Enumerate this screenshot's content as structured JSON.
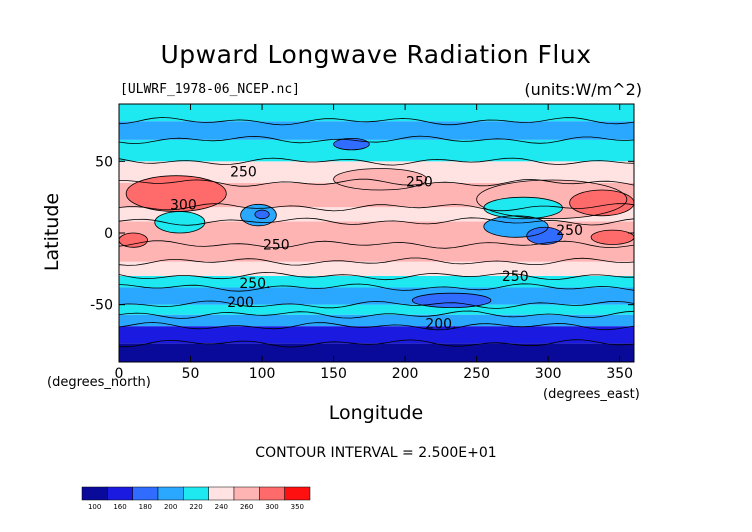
{
  "title": "Upward Longwave Radiation Flux",
  "source_label": "[ULWRF_1978-06_NCEP.nc]",
  "units_label": "(units:W/m^2)",
  "contour_interval": "CONTOUR INTERVAL = 2.500E+01",
  "x_units_note": "(degrees_north)",
  "east_units_note": "(degrees_east)",
  "chart_data": {
    "type": "heatmap",
    "title": "Upward Longwave Radiation Flux",
    "xlabel": "Longitude",
    "ylabel": "Latitude",
    "xlim": [
      0,
      360
    ],
    "ylim": [
      -90,
      90
    ],
    "x_ticks": [
      0,
      50,
      100,
      150,
      200,
      250,
      300,
      350
    ],
    "y_ticks": [
      -50,
      0,
      50
    ],
    "units": "W/m^2",
    "colorbar": {
      "levels": [
        100,
        160,
        180,
        200,
        220,
        240,
        260,
        300,
        350
      ],
      "colors": [
        "#0a0a9a",
        "#1a1ae0",
        "#2f6cff",
        "#2aa8ff",
        "#1ee8f0",
        "#ffe2e2",
        "#ffb4b4",
        "#ff6a6a",
        "#ff1010"
      ]
    },
    "zonal_bands": [
      {
        "lat": [
          -90,
          -77
        ],
        "value": 140
      },
      {
        "lat": [
          -77,
          -65
        ],
        "value": 170
      },
      {
        "lat": [
          -65,
          -57
        ],
        "value": 210
      },
      {
        "lat": [
          -57,
          -50
        ],
        "value": 225
      },
      {
        "lat": [
          -50,
          -38
        ],
        "value": 215
      },
      {
        "lat": [
          -38,
          -30
        ],
        "value": 235
      },
      {
        "lat": [
          -30,
          -20
        ],
        "value": 255
      },
      {
        "lat": [
          -20,
          -8
        ],
        "value": 270
      },
      {
        "lat": [
          -8,
          8
        ],
        "value": 265
      },
      {
        "lat": [
          8,
          18
        ],
        "value": 250
      },
      {
        "lat": [
          18,
          35
        ],
        "value": 280
      },
      {
        "lat": [
          35,
          50
        ],
        "value": 245
      },
      {
        "lat": [
          50,
          65
        ],
        "value": 225
      },
      {
        "lat": [
          65,
          78
        ],
        "value": 215
      },
      {
        "lat": [
          78,
          90
        ],
        "value": 238
      }
    ],
    "regions": [
      {
        "lon": [
          5,
          75
        ],
        "lat": [
          15,
          40
        ],
        "value": 320
      },
      {
        "lon": [
          250,
          355
        ],
        "lat": [
          10,
          37
        ],
        "value": 285
      },
      {
        "lon": [
          315,
          360
        ],
        "lat": [
          12,
          30
        ],
        "value": 310
      },
      {
        "lon": [
          330,
          360
        ],
        "lat": [
          -8,
          2
        ],
        "value": 310
      },
      {
        "lon": [
          0,
          20
        ],
        "lat": [
          -10,
          0
        ],
        "value": 310
      },
      {
        "lon": [
          255,
          300
        ],
        "lat": [
          -3,
          12
        ],
        "value": 215
      },
      {
        "lon": [
          285,
          310
        ],
        "lat": [
          -8,
          4
        ],
        "value": 190
      },
      {
        "lon": [
          25,
          60
        ],
        "lat": [
          0,
          15
        ],
        "value": 220
      },
      {
        "lon": [
          85,
          110
        ],
        "lat": [
          5,
          20
        ],
        "value": 210
      },
      {
        "lon": [
          95,
          105
        ],
        "lat": [
          10,
          16
        ],
        "value": 190
      },
      {
        "lon": [
          150,
          175
        ],
        "lat": [
          58,
          66
        ],
        "value": 195
      },
      {
        "lon": [
          205,
          260
        ],
        "lat": [
          -52,
          -42
        ],
        "value": 190
      },
      {
        "lon": [
          255,
          310
        ],
        "lat": [
          10,
          25
        ],
        "value": 235
      },
      {
        "lon": [
          150,
          215
        ],
        "lat": [
          30,
          45
        ],
        "value": 262
      }
    ],
    "contour_labels": [
      {
        "text": "250",
        "lon": 87,
        "lat": 43
      },
      {
        "text": "300",
        "lon": 45,
        "lat": 20
      },
      {
        "text": "250",
        "lon": 210,
        "lat": 36
      },
      {
        "text": "250",
        "lon": 110,
        "lat": -8
      },
      {
        "text": "250",
        "lon": 315,
        "lat": 2
      },
      {
        "text": "250.",
        "lon": 95,
        "lat": -35
      },
      {
        "text": "250",
        "lon": 277,
        "lat": -30
      },
      {
        "text": "200",
        "lon": 85,
        "lat": -48
      },
      {
        "text": "200.",
        "lon": 225,
        "lat": -63
      }
    ]
  }
}
